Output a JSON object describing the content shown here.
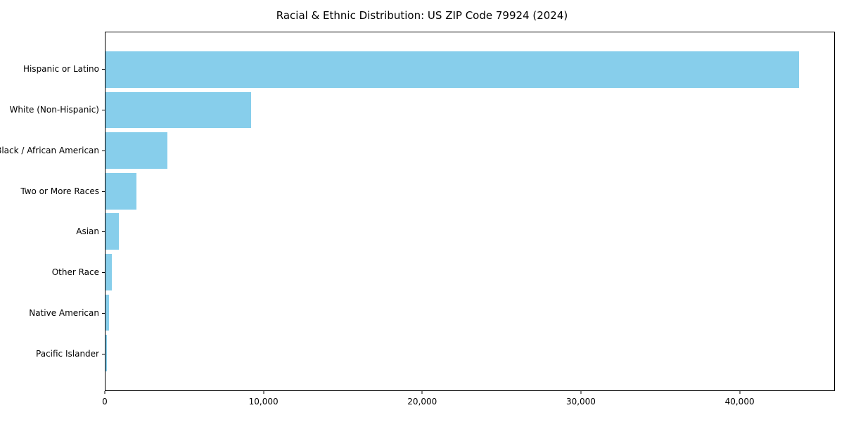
{
  "chart_data": {
    "type": "bar",
    "orientation": "horizontal",
    "title": "Racial & Ethnic Distribution: US ZIP Code 79924 (2024)",
    "categories": [
      "Hispanic or Latino",
      "White (Non-Hispanic)",
      "Black / African American",
      "Two or More Races",
      "Asian",
      "Other Race",
      "Native American",
      "Pacific Islander"
    ],
    "values": [
      43800,
      9200,
      3900,
      1950,
      850,
      380,
      230,
      80
    ],
    "xlabel": "",
    "ylabel": "",
    "xlim": [
      0,
      46000
    ],
    "xticks": [
      {
        "value": 0,
        "label": "0"
      },
      {
        "value": 10000,
        "label": "10,000"
      },
      {
        "value": 20000,
        "label": "20,000"
      },
      {
        "value": 30000,
        "label": "30,000"
      },
      {
        "value": 40000,
        "label": "40,000"
      }
    ],
    "bar_color": "#87CEEB",
    "grid": false,
    "legend_position": "none"
  }
}
